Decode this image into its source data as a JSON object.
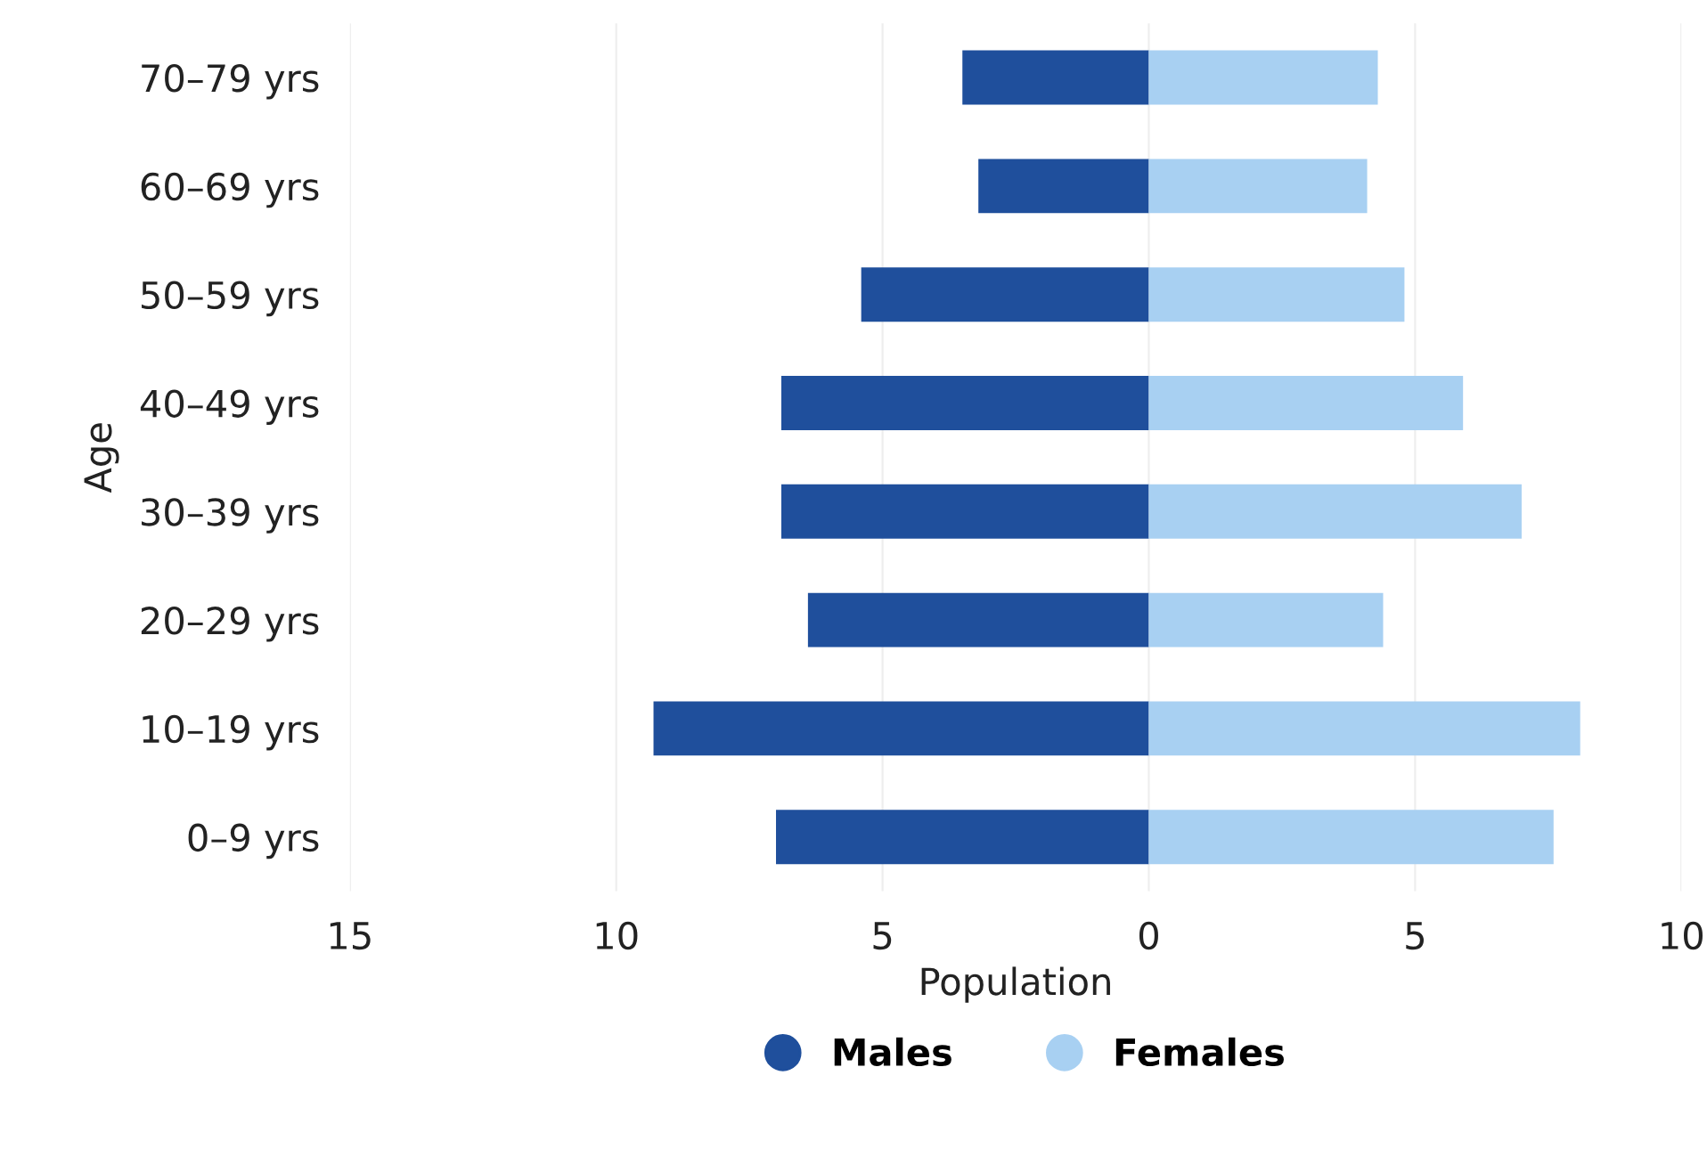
{
  "chart_data": {
    "type": "bar",
    "orientation": "horizontal",
    "stacked": true,
    "categories": [
      "70–79 yrs",
      "60–69 yrs",
      "50–59 yrs",
      "40–49 yrs",
      "30–39 yrs",
      "20–29 yrs",
      "10–19 yrs",
      "0–9 yrs"
    ],
    "series": [
      {
        "name": "Males",
        "color": "#1f4f9c",
        "values": [
          -3.5,
          -3.2,
          -5.4,
          -6.9,
          -6.9,
          -6.4,
          -9.3,
          -7.0
        ]
      },
      {
        "name": "Females",
        "color": "#a8d0f2",
        "values": [
          4.3,
          4.1,
          4.8,
          5.9,
          7.0,
          4.4,
          8.1,
          7.6
        ]
      }
    ],
    "xlabel": "Population",
    "ylabel": "Age",
    "xlim": [
      -15,
      10
    ],
    "xticks": [
      {
        "value": -15,
        "label": "15"
      },
      {
        "value": -10,
        "label": "10"
      },
      {
        "value": -5,
        "label": "5"
      },
      0,
      5,
      10
    ],
    "grid": "x",
    "legend": "bottom"
  }
}
